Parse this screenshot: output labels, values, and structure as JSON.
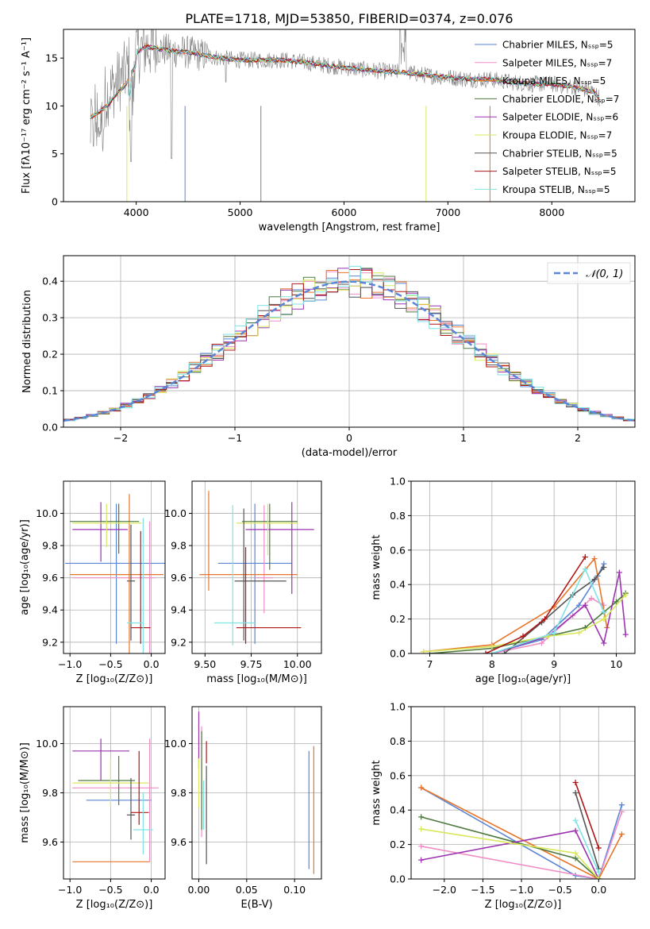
{
  "figure_title": "PLATE=1718, MJD=53850, FIBERID=0374, z=0.076",
  "colors": {
    "chabrier_miles": "#5b86d6",
    "salpeter_miles": "#f08ec6",
    "kroupa_miles": "#e8752c",
    "chabrier_elodie": "#4f7a3f",
    "salpeter_elodie": "#9b33b0",
    "kroupa_elodie": "#d9e75a",
    "chabrier_stelib": "#555555",
    "salpeter_stelib": "#b01515",
    "kroupa_stelib": "#7ee3e3",
    "normal": "#5b86d6",
    "data": "#808080"
  },
  "chart_data": [
    {
      "id": "spectrum",
      "type": "line",
      "xlabel": "wavelength [Angstrom, rest frame]",
      "ylabel": "Flux [fλ10⁻¹⁷ erg cm⁻² s⁻¹ A⁻¹]",
      "xlim": [
        3300,
        8800
      ],
      "ylim": [
        0,
        18
      ],
      "xticks": [
        "4000",
        "5000",
        "6000",
        "7000",
        "8000"
      ],
      "yticks": [
        "0",
        "5",
        "10",
        "15"
      ],
      "continuum_x": [
        3560,
        3700,
        3900,
        4000,
        4100,
        4300,
        4500,
        4800,
        5000,
        5200,
        5400,
        5600,
        5800,
        6000,
        6200,
        6400,
        6600,
        6800,
        7000,
        7200,
        7400,
        7600,
        7800,
        8000,
        8200,
        8400,
        8460
      ],
      "continuum_y": [
        10.0,
        11.0,
        13.5,
        15.6,
        16.2,
        15.8,
        15.6,
        15.0,
        14.8,
        14.8,
        14.8,
        14.6,
        14.3,
        14.0,
        13.8,
        13.6,
        13.5,
        13.2,
        13.0,
        12.8,
        12.8,
        12.5,
        12.3,
        12.3,
        12.0,
        11.5,
        10.8
      ],
      "legend": [
        "Chabrier MILES, Nₛₛₚ=5",
        "Salpeter MILES, Nₛₛₚ=7",
        "Kroupa MILES, Nₛₛₚ=5",
        "Chabrier ELODIE, Nₛₛₚ=7",
        "Salpeter ELODIE, Nₛₛₚ=6",
        "Kroupa ELODIE, Nₛₛₚ=7",
        "Chabrier STELIB, Nₛₛₚ=5",
        "Salpeter STELIB, Nₛₛₚ=5",
        "Kroupa STELIB, Nₛₛₚ=5"
      ],
      "grid": false,
      "legend_position": "upper-right"
    },
    {
      "id": "residuals",
      "type": "step-histogram",
      "xlabel": "(data-model)/error",
      "ylabel": "Normed distribution",
      "xlim": [
        -2.5,
        2.5
      ],
      "ylim": [
        0,
        0.47
      ],
      "xticks": [
        "−2",
        "−1",
        "0",
        "1",
        "2"
      ],
      "yticks": [
        "0.0",
        "0.1",
        "0.2",
        "0.3",
        "0.4"
      ],
      "legend": [
        "𝒩(0, 1)"
      ],
      "grid": true,
      "legend_position": "upper-right",
      "bin_width": 0.1,
      "bin_start": -2.5
    },
    {
      "id": "age_vs_Z",
      "type": "errorbar",
      "xlabel": "Z [log₁₀(Z/Z⊙)]",
      "ylabel": "age  [log₁₀(age/yr)]",
      "xlim": [
        -1.08,
        0.17
      ],
      "ylim": [
        9.13,
        10.2
      ],
      "xticks": [
        "−1.0",
        "−0.5",
        "0.0"
      ],
      "yticks": [
        "9.2",
        "9.4",
        "9.6",
        "9.8",
        "10.0"
      ],
      "grid": true,
      "points": [
        {
          "x": -0.43,
          "xerr": [
            0.63,
            0.64
          ],
          "y": 9.69,
          "yerr": [
            0.5,
            0.37
          ]
        },
        {
          "x": -0.02,
          "xerr": [
            0.95,
            0.07
          ],
          "y": 9.6,
          "yerr": [
            0.5,
            0.35
          ]
        },
        {
          "x": -0.27,
          "xerr": [
            0.73,
            0.42
          ],
          "y": 9.62,
          "yerr": [
            0.5,
            0.5
          ]
        },
        {
          "x": -0.4,
          "xerr": [
            0.6,
            0.25
          ],
          "y": 9.95,
          "yerr": [
            0.2,
            0.11
          ]
        },
        {
          "x": -0.62,
          "xerr": [
            0.35,
            0.33
          ],
          "y": 9.9,
          "yerr": [
            0.2,
            0.17
          ]
        },
        {
          "x": -0.55,
          "xerr": [
            0.42,
            0.43
          ],
          "y": 9.94,
          "yerr": [
            0.15,
            0.12
          ]
        },
        {
          "x": -0.25,
          "xerr": [
            0.05,
            0.05
          ],
          "y": 9.58,
          "yerr": [
            0.37,
            0.35
          ]
        },
        {
          "x": -0.13,
          "xerr": [
            0.12,
            0.12
          ],
          "y": 9.29,
          "yerr": [
            0.1,
            0.6
          ]
        },
        {
          "x": -0.1,
          "xerr": [
            0.2,
            0.0
          ],
          "y": 9.32,
          "yerr": [
            0.2,
            0.65
          ]
        }
      ]
    },
    {
      "id": "age_vs_mass",
      "type": "errorbar",
      "xlabel": "mass [log₁₀(M/M⊙)]",
      "ylabel": "",
      "xlim": [
        9.43,
        10.13
      ],
      "ylim": [
        9.13,
        10.2
      ],
      "xticks": [
        "9.50",
        "9.75",
        "10.00"
      ],
      "yticks": [
        "9.2",
        "9.4",
        "9.6",
        "9.8",
        "10.0"
      ],
      "grid": true,
      "points": [
        {
          "x": 9.77,
          "xerr": [
            0.2,
            0.2
          ],
          "y": 9.69,
          "yerr": [
            0.5,
            0.37
          ]
        },
        {
          "x": 9.82,
          "xerr": [
            0.05,
            0.05
          ],
          "y": 9.6,
          "yerr": [
            0.22,
            0.45
          ]
        },
        {
          "x": 9.52,
          "xerr": [
            0.05,
            0.48
          ],
          "y": 9.62,
          "yerr": [
            0.1,
            0.52
          ]
        },
        {
          "x": 9.85,
          "xerr": [
            0.15,
            0.15
          ],
          "y": 9.95,
          "yerr": [
            0.3,
            0.11
          ]
        },
        {
          "x": 9.97,
          "xerr": [
            0.25,
            0.12
          ],
          "y": 9.9,
          "yerr": [
            0.4,
            0.17
          ]
        },
        {
          "x": 9.84,
          "xerr": [
            0.17,
            0.16
          ],
          "y": 9.94,
          "yerr": [
            0.2,
            0.12
          ]
        },
        {
          "x": 9.71,
          "xerr": [
            0.05,
            0.23
          ],
          "y": 9.58,
          "yerr": [
            0.37,
            0.45
          ]
        },
        {
          "x": 9.72,
          "xerr": [
            0.05,
            0.3
          ],
          "y": 9.29,
          "yerr": [
            0.1,
            0.5
          ]
        },
        {
          "x": 9.65,
          "xerr": [
            0.1,
            0.12
          ],
          "y": 9.32,
          "yerr": [
            0.14,
            0.73
          ]
        }
      ]
    },
    {
      "id": "weight_vs_age",
      "type": "line",
      "xlabel": "age  [log₁₀(age/yr)]",
      "ylabel": "mass weight",
      "xlim": [
        6.7,
        10.3
      ],
      "ylim": [
        0,
        1
      ],
      "xticks": [
        "7",
        "8",
        "9",
        "10"
      ],
      "yticks": [
        "0.0",
        "0.2",
        "0.4",
        "0.6",
        "0.8",
        "1.0"
      ],
      "grid": true,
      "series": [
        {
          "key": "chabrier_miles",
          "x": [
            8.0,
            8.8,
            9.4,
            9.7,
            9.8
          ],
          "y": [
            0.0,
            0.08,
            0.28,
            0.45,
            0.52
          ]
        },
        {
          "key": "salpeter_miles",
          "x": [
            8.0,
            8.8,
            9.3,
            9.6,
            9.8
          ],
          "y": [
            0.0,
            0.06,
            0.22,
            0.32,
            0.28
          ]
        },
        {
          "key": "kroupa_miles",
          "x": [
            6.9,
            8.0,
            9.0,
            9.65,
            9.85
          ],
          "y": [
            0.01,
            0.05,
            0.27,
            0.55,
            0.15
          ]
        },
        {
          "key": "chabrier_elodie",
          "x": [
            7.0,
            8.0,
            8.9,
            9.5,
            9.8,
            10.0,
            10.15
          ],
          "y": [
            0.0,
            0.03,
            0.1,
            0.15,
            0.24,
            0.3,
            0.35
          ]
        },
        {
          "key": "salpeter_elodie",
          "x": [
            8.0,
            8.9,
            9.5,
            9.8,
            10.05,
            10.15
          ],
          "y": [
            0.0,
            0.1,
            0.28,
            0.06,
            0.47,
            0.11
          ]
        },
        {
          "key": "kroupa_elodie",
          "x": [
            6.9,
            8.0,
            8.9,
            9.4,
            9.8,
            10.15
          ],
          "y": [
            0.01,
            0.04,
            0.1,
            0.12,
            0.2,
            0.34
          ]
        },
        {
          "key": "chabrier_stelib",
          "x": [
            8.2,
            8.8,
            9.3,
            9.65,
            9.8
          ],
          "y": [
            0.0,
            0.18,
            0.34,
            0.43,
            0.5
          ]
        },
        {
          "key": "salpeter_stelib",
          "x": [
            7.9,
            8.5,
            8.85,
            9.5
          ],
          "y": [
            0.0,
            0.1,
            0.2,
            0.56
          ]
        },
        {
          "key": "kroupa_stelib",
          "x": [
            8.0,
            9.0,
            9.5,
            9.8
          ],
          "y": [
            0.0,
            0.12,
            0.49,
            0.24
          ]
        }
      ]
    },
    {
      "id": "mass_vs_Z",
      "type": "errorbar",
      "xlabel": "Z [log₁₀(Z/Z⊙)]",
      "ylabel": "mass [log₁₀(M/M⊙)]",
      "xlim": [
        -1.08,
        0.17
      ],
      "ylim": [
        9.45,
        10.15
      ],
      "xticks": [
        "−1.0",
        "−0.5",
        "0.0"
      ],
      "yticks": [
        "9.6",
        "9.8",
        "10.0"
      ],
      "grid": true,
      "points": [
        {
          "x": -0.4,
          "xerr": [
            0.4,
            0.4
          ],
          "y": 9.77,
          "yerr": [
            0.0,
            0.0
          ]
        },
        {
          "x": -0.02,
          "xerr": [
            0.95,
            0.11
          ],
          "y": 9.82,
          "yerr": [
            0.3,
            0.2
          ]
        },
        {
          "x": -0.5,
          "xerr": [
            0.47,
            0.48
          ],
          "y": 9.52,
          "yerr": [
            0.0,
            0.0
          ]
        },
        {
          "x": -0.4,
          "xerr": [
            0.5,
            0.2
          ],
          "y": 9.85,
          "yerr": [
            0.1,
            0.1
          ]
        },
        {
          "x": -0.62,
          "xerr": [
            0.35,
            0.35
          ],
          "y": 9.97,
          "yerr": [
            0.12,
            0.05
          ]
        },
        {
          "x": -0.5,
          "xerr": [
            0.47,
            0.47
          ],
          "y": 9.84,
          "yerr": [
            0.1,
            0.1
          ]
        },
        {
          "x": -0.25,
          "xerr": [
            0.05,
            0.05
          ],
          "y": 9.71,
          "yerr": [
            0.1,
            0.15
          ]
        },
        {
          "x": -0.15,
          "xerr": [
            0.1,
            0.12
          ],
          "y": 9.72,
          "yerr": [
            0.05,
            0.25
          ]
        },
        {
          "x": -0.1,
          "xerr": [
            0.12,
            0.12
          ],
          "y": 9.65,
          "yerr": [
            0.1,
            0.15
          ]
        }
      ]
    },
    {
      "id": "mass_vs_ebv",
      "type": "errorbar",
      "xlabel": "E(B-V)",
      "ylabel": "",
      "xlim": [
        -0.007,
        0.128
      ],
      "ylim": [
        9.45,
        10.15
      ],
      "xticks": [
        "0.00",
        "0.05",
        "0.10"
      ],
      "yticks": [
        "9.6",
        "9.8",
        "10.0"
      ],
      "grid": true,
      "points": [
        {
          "x": 0.115,
          "xerr": [
            0,
            0
          ],
          "y": 9.77,
          "yerr": [
            0.28,
            0.2
          ]
        },
        {
          "x": 0.003,
          "xerr": [
            0,
            0
          ],
          "y": 9.82,
          "yerr": [
            0.2,
            0.25
          ]
        },
        {
          "x": 0.12,
          "xerr": [
            0,
            0
          ],
          "y": 9.72,
          "yerr": [
            0.25,
            0.27
          ]
        },
        {
          "x": 0.003,
          "xerr": [
            0,
            0
          ],
          "y": 9.85,
          "yerr": [
            0.2,
            0.2
          ]
        },
        {
          "x": 0.0,
          "xerr": [
            0,
            0
          ],
          "y": 10.0,
          "yerr": [
            0.1,
            0.13
          ]
        },
        {
          "x": 0.0,
          "xerr": [
            0,
            0
          ],
          "y": 9.84,
          "yerr": [
            0.1,
            0.1
          ]
        },
        {
          "x": 0.008,
          "xerr": [
            0,
            0
          ],
          "y": 9.71,
          "yerr": [
            0.2,
            0.2
          ]
        },
        {
          "x": 0.008,
          "xerr": [
            0,
            0
          ],
          "y": 9.96,
          "yerr": [
            0.04,
            0.05
          ]
        },
        {
          "x": 0.005,
          "xerr": [
            0,
            0
          ],
          "y": 9.75,
          "yerr": [
            0.1,
            0.1
          ]
        }
      ]
    },
    {
      "id": "weight_vs_Z",
      "type": "line",
      "xlabel": "Z [log₁₀(Z/Z⊙)]",
      "ylabel": "mass weight",
      "xlim": [
        -2.43,
        0.47
      ],
      "ylim": [
        0,
        1
      ],
      "xticks": [
        "−2.0",
        "−1.5",
        "−1.0",
        "−0.5",
        "0.0"
      ],
      "yticks": [
        "0.0",
        "0.2",
        "0.4",
        "0.6",
        "0.8",
        "1.0"
      ],
      "grid": true,
      "series": [
        {
          "key": "chabrier_miles",
          "x": [
            -2.3,
            -0.3,
            0.0,
            0.3
          ],
          "y": [
            0.53,
            0.02,
            0.0,
            0.43
          ]
        },
        {
          "key": "salpeter_miles",
          "x": [
            -2.3,
            0.0,
            0.3
          ],
          "y": [
            0.19,
            0.0,
            0.39
          ]
        },
        {
          "key": "kroupa_miles",
          "x": [
            -2.3,
            0.0,
            0.3
          ],
          "y": [
            0.53,
            0.0,
            0.26
          ]
        },
        {
          "key": "chabrier_elodie",
          "x": [
            -2.3,
            -0.3,
            0.0
          ],
          "y": [
            0.36,
            0.12,
            0.0
          ]
        },
        {
          "key": "salpeter_elodie",
          "x": [
            -2.3,
            -0.3,
            0.0
          ],
          "y": [
            0.11,
            0.28,
            0.0
          ]
        },
        {
          "key": "kroupa_elodie",
          "x": [
            -2.3,
            -0.3,
            0.0
          ],
          "y": [
            0.29,
            0.15,
            0.0
          ]
        },
        {
          "key": "chabrier_stelib",
          "x": [
            -0.3,
            0.0
          ],
          "y": [
            0.5,
            0.06
          ]
        },
        {
          "key": "salpeter_stelib",
          "x": [
            -0.3,
            0.0
          ],
          "y": [
            0.56,
            0.18
          ]
        },
        {
          "key": "kroupa_stelib",
          "x": [
            -0.3,
            0.0
          ],
          "y": [
            0.34,
            0.04
          ]
        }
      ]
    }
  ]
}
